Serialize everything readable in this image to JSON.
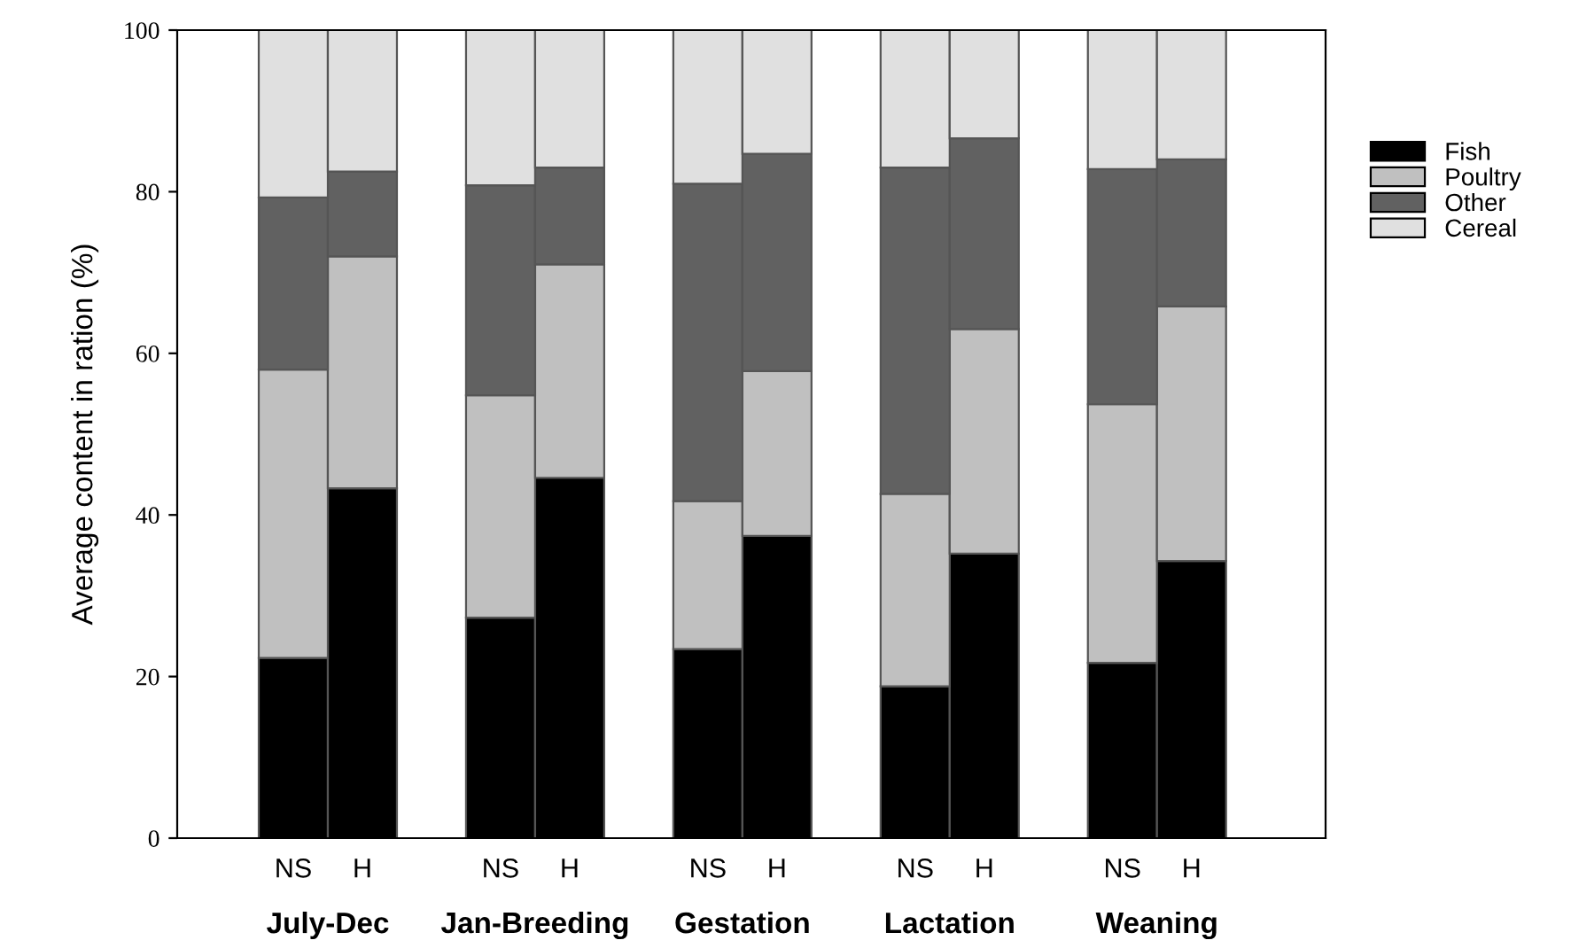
{
  "chart_data": {
    "type": "bar",
    "stacked": true,
    "ylabel": "Average content in ration (%)",
    "categories": [
      "NS",
      "H",
      "NS",
      "H",
      "NS",
      "H",
      "NS",
      "H",
      "NS",
      "H"
    ],
    "annotations": [
      "July-Dec",
      "Jan-Breeding",
      "Gestation",
      "Lactation",
      "Weaning"
    ],
    "series": [
      {
        "name": "Fish",
        "color": "#000000",
        "values": [
          22.3,
          43.3,
          27.3,
          44.6,
          23.4,
          37.4,
          18.8,
          35.2,
          21.7,
          34.3
        ]
      },
      {
        "name": "Poultry",
        "color": "#c0c0c0",
        "values": [
          35.7,
          28.7,
          27.5,
          26.4,
          18.3,
          20.4,
          23.8,
          27.8,
          32.0,
          31.5
        ]
      },
      {
        "name": "Other",
        "color": "#616161",
        "values": [
          21.3,
          10.5,
          26.0,
          12.0,
          39.3,
          26.9,
          40.4,
          23.6,
          29.1,
          18.2
        ]
      },
      {
        "name": "Cereal",
        "color": "#e0e0e0",
        "values": [
          20.7,
          17.5,
          19.2,
          17.0,
          19.0,
          15.3,
          17.0,
          13.4,
          17.2,
          16.0
        ]
      }
    ],
    "ylim": [
      0,
      100
    ],
    "yticks": [
      0,
      20,
      40,
      60,
      80,
      100
    ],
    "grid": false,
    "legend": "right"
  }
}
